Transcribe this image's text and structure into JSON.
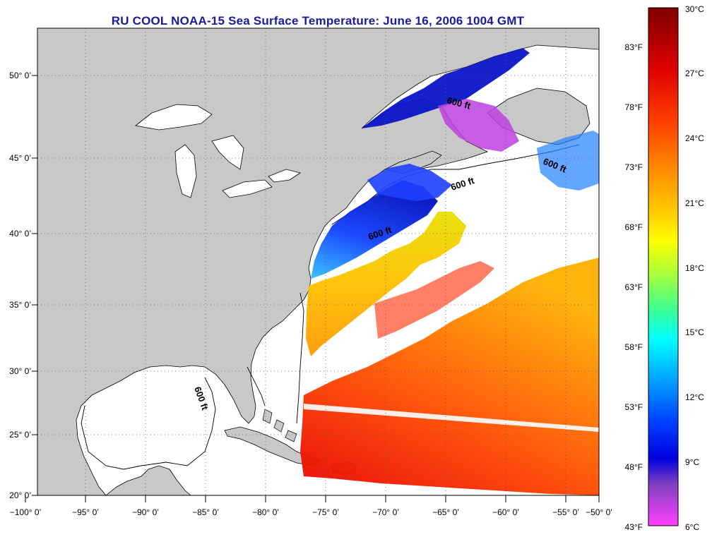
{
  "title": "RU COOL  NOAA-15  Sea Surface Temperature:  June 16, 2006 1004 GMT",
  "map": {
    "lon_labels": [
      "−100° 0’",
      "−95° 0’",
      "−90° 0’",
      "−85° 0’",
      "−80° 0’",
      "−75° 0’",
      "−70° 0’",
      "−65° 0’",
      "−60° 0’",
      "−55° 0’",
      "−50° 0’"
    ],
    "lat_labels": [
      "50° 0’",
      "45° 0’",
      "40° 0’",
      "35° 0’",
      "30° 0’",
      "25° 0’",
      "20° 0’"
    ],
    "contour_labels": [
      "600 ft",
      "600 ft",
      "600 ft",
      "600 ft",
      "600 ft"
    ],
    "land_color": "#c8c8c8",
    "ocean_no_data_color": "#ffffff"
  },
  "colorbar": {
    "celsius_labels": [
      "30°C",
      "27°C",
      "24°C",
      "21°C",
      "18°C",
      "15°C",
      "12°C",
      "9°C",
      "6°C"
    ],
    "fahrenheit_labels": [
      "83°F",
      "78°F",
      "73°F",
      "68°F",
      "63°F",
      "58°F",
      "53°F",
      "48°F",
      "43°F"
    ],
    "colors_top_to_bottom": [
      "#800000",
      "#e00000",
      "#ff3000",
      "#ff8000",
      "#ffc000",
      "#ffff00",
      "#a0ff40",
      "#40ff80",
      "#00ffff",
      "#00a0ff",
      "#0040ff",
      "#0000e0",
      "#8040c0",
      "#ff40ff"
    ]
  }
}
